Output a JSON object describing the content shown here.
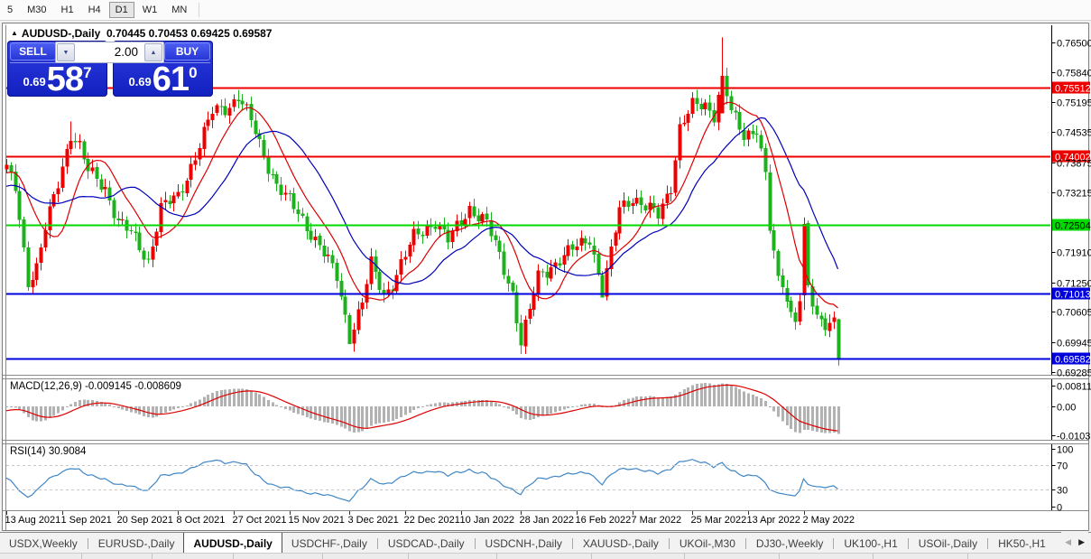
{
  "toolbar": {
    "timeframes": [
      "5",
      "M30",
      "H1",
      "H4",
      "D1",
      "W1",
      "MN"
    ],
    "active": "D1"
  },
  "chart_header": {
    "arrow": "▲",
    "symbol": "AUDUSD-,Daily",
    "ohlc_text": "0.70445 0.70453 0.69425 0.69587"
  },
  "trade_panel": {
    "sell_label": "SELL",
    "buy_label": "BUY",
    "volume": "2.00",
    "spinner_down": "▼",
    "spinner_up": "▲",
    "sell_price": {
      "small": "0.69",
      "big": "58",
      "sup": "7"
    },
    "buy_price": {
      "small": "0.69",
      "big": "61",
      "sup": "0"
    }
  },
  "indicators": {
    "macd": {
      "label": "MACD(12,26,9) -0.009145 -0.008609",
      "params": [
        12,
        26,
        9
      ],
      "main_value": -0.009145,
      "signal_value": -0.008609,
      "axis": [
        {
          "v": 0.00811,
          "t": "0.00811"
        },
        {
          "v": 0,
          "t": "0.00"
        },
        {
          "v": -0.010311,
          "t": "-0.010311"
        }
      ]
    },
    "rsi": {
      "label": "RSI(14) 30.9084",
      "period": 14,
      "value": 30.9084,
      "levels": [
        70,
        30
      ],
      "axis": [
        {
          "v": 100,
          "t": "100"
        },
        {
          "v": 70,
          "t": "70"
        },
        {
          "v": 30,
          "t": "30"
        },
        {
          "v": 0,
          "t": "0"
        }
      ]
    }
  },
  "price_axis": {
    "ticks": [
      {
        "v": 0.765,
        "t": "0.76500"
      },
      {
        "v": 0.7584,
        "t": "0.75840"
      },
      {
        "v": 0.75195,
        "t": "0.75195"
      },
      {
        "v": 0.74535,
        "t": "0.74535"
      },
      {
        "v": 0.73875,
        "t": "0.73875"
      },
      {
        "v": 0.73215,
        "t": "0.73215"
      },
      {
        "v": 0.7191,
        "t": "0.71910"
      },
      {
        "v": 0.7125,
        "t": "0.71250"
      },
      {
        "v": 0.70605,
        "t": "0.70605"
      },
      {
        "v": 0.69945,
        "t": "0.69945"
      },
      {
        "v": 0.69285,
        "t": "0.69285"
      }
    ]
  },
  "levels": [
    {
      "price": 0.75512,
      "t": "0.75512",
      "color": "#ee0000",
      "text_color": "#ffffff",
      "role": "resistance"
    },
    {
      "price": 0.74002,
      "t": "0.74002",
      "color": "#ee0000",
      "text_color": "#ffffff",
      "role": "resistance"
    },
    {
      "price": 0.72504,
      "t": "0.72504",
      "color": "#00d800",
      "text_color": "#000000",
      "role": "pivot"
    },
    {
      "price": 0.71013,
      "t": "0.71013",
      "color": "#0000dd",
      "text_color": "#ffffff",
      "role": "support"
    },
    {
      "price": 0.69582,
      "t": "0.69582",
      "color": "#0000dd",
      "text_color": "#ffffff",
      "role": "bid"
    }
  ],
  "date_axis": [
    {
      "d": 0,
      "t": "13 Aug 2021"
    },
    {
      "d": 13,
      "t": "1 Sep 2021"
    },
    {
      "d": 26,
      "t": "20 Sep 2021"
    },
    {
      "d": 40,
      "t": "8 Oct 2021"
    },
    {
      "d": 53,
      "t": "27 Oct 2021"
    },
    {
      "d": 66,
      "t": "15 Nov 2021"
    },
    {
      "d": 80,
      "t": "3 Dec 2021"
    },
    {
      "d": 93,
      "t": "22 Dec 2021"
    },
    {
      "d": 106,
      "t": "10 Jan 2022"
    },
    {
      "d": 120,
      "t": "28 Jan 2022"
    },
    {
      "d": 133,
      "t": "16 Feb 2022"
    },
    {
      "d": 146,
      "t": "7 Mar 2022"
    },
    {
      "d": 160,
      "t": "25 Mar 2022"
    },
    {
      "d": 173,
      "t": "13 Apr 2022"
    },
    {
      "d": 186,
      "t": "2 May 2022"
    }
  ],
  "tabs": {
    "scroll_left": "◀",
    "scroll_right": "▶",
    "items": [
      {
        "label": "USDX,Weekly",
        "active": false
      },
      {
        "label": "EURUSD-,Daily",
        "active": false
      },
      {
        "label": "AUDUSD-,Daily",
        "active": true
      },
      {
        "label": "USDCHF-,Daily",
        "active": false
      },
      {
        "label": "USDCAD-,Daily",
        "active": false
      },
      {
        "label": "USDCNH-,Daily",
        "active": false
      },
      {
        "label": "XAUUSD-,Daily",
        "active": false
      },
      {
        "label": "UKOil-,M30",
        "active": false
      },
      {
        "label": "DJ30-,Weekly",
        "active": false
      },
      {
        "label": "UK100-,H1",
        "active": false
      },
      {
        "label": "USOil-,Daily",
        "active": false
      },
      {
        "label": "HK50-,H1",
        "active": false
      }
    ]
  },
  "chart_data": {
    "type": "candlestick",
    "symbol": "AUDUSD-",
    "timeframe": "Daily",
    "colors": {
      "bull": "#ee0000",
      "bear": "#1db21d",
      "ma_fast": "#dd0000",
      "ma_slow": "#0000bb",
      "macd_hist": "#b2b2b2",
      "macd_signal": "#dd0000",
      "rsi_line": "#3e86c6",
      "level_red": "#ee0000",
      "level_green": "#00d800",
      "level_blue": "#0000dd"
    },
    "ma_periods": {
      "fast": 10,
      "slow": 21
    },
    "price_range_visible": [
      0.692,
      0.769
    ],
    "last_candle": {
      "open": 0.70445,
      "high": 0.70453,
      "low": 0.69425,
      "close": 0.69587
    },
    "warmup_anchors": [
      [
        -30,
        0.7488
      ],
      [
        -22,
        0.733
      ],
      [
        -12,
        0.7292
      ],
      [
        -6,
        0.7368
      ],
      [
        -1,
        0.7378
      ]
    ],
    "anchors": [
      [
        0,
        0.737
      ],
      [
        2,
        0.7332
      ],
      [
        5,
        0.7128
      ],
      [
        7,
        0.7158
      ],
      [
        9,
        0.7242
      ],
      [
        12,
        0.7342
      ],
      [
        15,
        0.7452
      ],
      [
        17,
        0.7422
      ],
      [
        19,
        0.7368
      ],
      [
        23,
        0.7332
      ],
      [
        26,
        0.7258
      ],
      [
        29,
        0.7232
      ],
      [
        33,
        0.7172
      ],
      [
        36,
        0.7288
      ],
      [
        40,
        0.7312
      ],
      [
        44,
        0.7402
      ],
      [
        48,
        0.7498
      ],
      [
        52,
        0.7512
      ],
      [
        54,
        0.7532
      ],
      [
        57,
        0.7478
      ],
      [
        60,
        0.7402
      ],
      [
        63,
        0.7338
      ],
      [
        68,
        0.7276
      ],
      [
        73,
        0.7206
      ],
      [
        77,
        0.7136
      ],
      [
        80,
        0.7006
      ],
      [
        83,
        0.7082
      ],
      [
        85,
        0.7164
      ],
      [
        88,
        0.7096
      ],
      [
        90,
        0.7124
      ],
      [
        95,
        0.7224
      ],
      [
        100,
        0.7258
      ],
      [
        103,
        0.7216
      ],
      [
        108,
        0.7288
      ],
      [
        112,
        0.7254
      ],
      [
        115,
        0.7182
      ],
      [
        118,
        0.7102
      ],
      [
        120,
        0.6992
      ],
      [
        122,
        0.7062
      ],
      [
        124,
        0.7138
      ],
      [
        129,
        0.7174
      ],
      [
        133,
        0.7204
      ],
      [
        136,
        0.7224
      ],
      [
        139,
        0.7102
      ],
      [
        141,
        0.7188
      ],
      [
        143,
        0.7288
      ],
      [
        146,
        0.7312
      ],
      [
        149,
        0.7288
      ],
      [
        152,
        0.7272
      ],
      [
        155,
        0.7338
      ],
      [
        157,
        0.7462
      ],
      [
        160,
        0.751
      ],
      [
        163,
        0.7514
      ],
      [
        165,
        0.7494
      ],
      [
        167,
        0.7578
      ],
      [
        169,
        0.7496
      ],
      [
        172,
        0.7446
      ],
      [
        175,
        0.7464
      ],
      [
        177,
        0.7358
      ],
      [
        178,
        0.7242
      ],
      [
        180,
        0.7125
      ],
      [
        181,
        0.7124
      ],
      [
        183,
        0.7056
      ],
      [
        184,
        0.705
      ],
      [
        185,
        0.7094
      ],
      [
        186,
        0.7253
      ],
      [
        187,
        0.7112
      ],
      [
        188,
        0.7075
      ],
      [
        189,
        0.704
      ],
      [
        191,
        0.7035
      ],
      [
        193,
        0.7046
      ],
      [
        194,
        0.69587
      ]
    ],
    "forced": {
      "5": {
        "l": 0.7106
      },
      "15": {
        "h": 0.7477
      },
      "54": {
        "h": 0.7546
      },
      "80": {
        "l": 0.6993
      },
      "120": {
        "l": 0.6968
      },
      "139": {
        "l": 0.7094
      },
      "167": {
        "o": 0.7495,
        "c": 0.7577,
        "h": 0.7661
      },
      "186": {
        "o": 0.7096,
        "c": 0.7253
      },
      "194": {
        "o": 0.70445,
        "h": 0.70453,
        "l": 0.69425,
        "c": 0.69587
      }
    }
  }
}
